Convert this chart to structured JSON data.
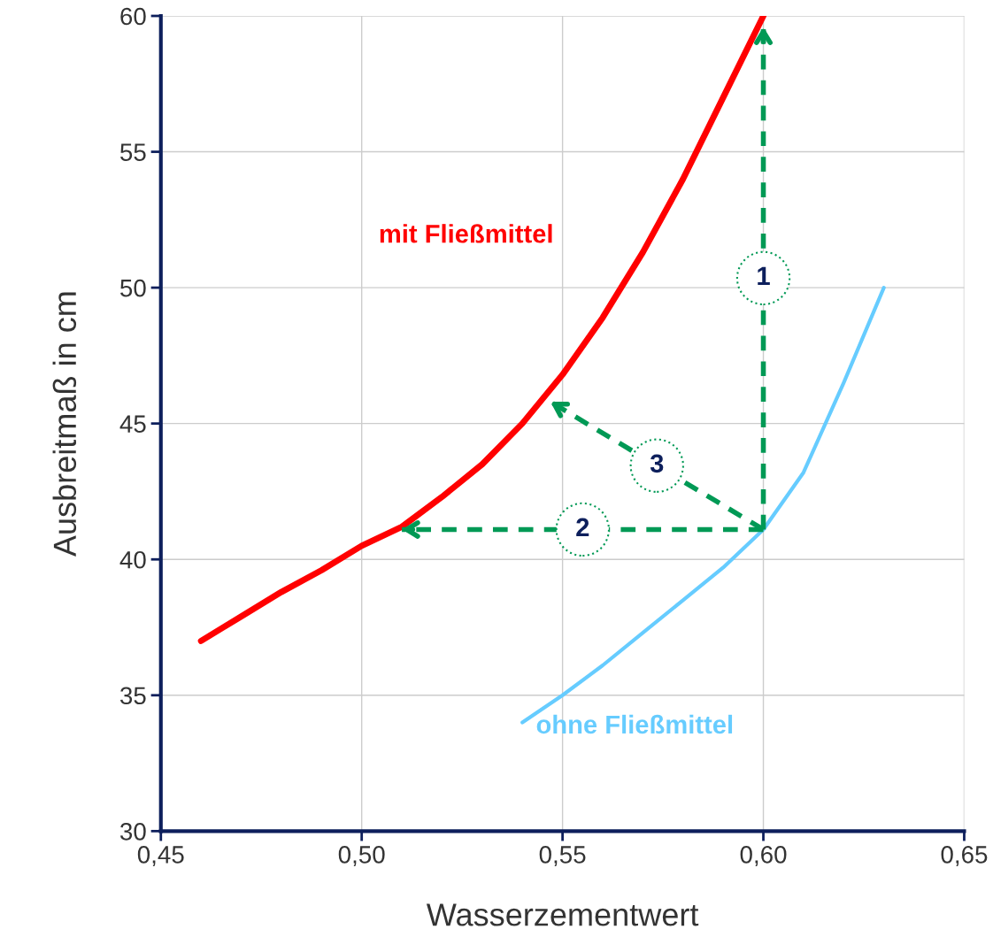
{
  "chart_data": {
    "type": "line",
    "xlabel": "Wasserzementwert",
    "ylabel": "Ausbreitmaß in cm",
    "xlim": [
      0.45,
      0.65
    ],
    "xticks": [
      {
        "value": 0.45,
        "label": "0,45"
      },
      {
        "value": 0.5,
        "label": "0,50"
      },
      {
        "value": 0.55,
        "label": "0,55"
      },
      {
        "value": 0.6,
        "label": "0,60"
      },
      {
        "value": 0.65,
        "label": "0,65"
      }
    ],
    "ylim": [
      30,
      60
    ],
    "yticks": [
      30,
      35,
      40,
      45,
      50,
      55,
      60
    ],
    "grid": true,
    "marker": "none",
    "line_style": "solid",
    "series": [
      {
        "name": "mit Fließmittel",
        "color": "#ff0000",
        "x": [
          0.46,
          0.47,
          0.48,
          0.49,
          0.5,
          0.51,
          0.52,
          0.53,
          0.54,
          0.55,
          0.56,
          0.57,
          0.58,
          0.59,
          0.6
        ],
        "values": [
          37.0,
          37.9,
          38.8,
          39.6,
          40.5,
          41.2,
          42.3,
          43.5,
          45.0,
          46.8,
          48.9,
          51.3,
          54.0,
          57.0,
          60.0
        ]
      },
      {
        "name": "ohne Fließmittel",
        "color": "#66ccff",
        "x": [
          0.54,
          0.55,
          0.56,
          0.57,
          0.58,
          0.59,
          0.6,
          0.61,
          0.62,
          0.63
        ],
        "values": [
          34.0,
          35.0,
          36.1,
          37.3,
          38.5,
          39.7,
          41.1,
          43.2,
          46.5,
          50.0
        ]
      },
      {
        "color": "#009955",
        "line_style": "dashed",
        "x": [
          0.6,
          0.6
        ],
        "values": [
          41.1,
          59.6
        ]
      },
      {
        "color": "#009955",
        "line_style": "dashed",
        "x": [
          0.6,
          0.51
        ],
        "values": [
          41.1,
          41.1
        ]
      },
      {
        "color": "#009955",
        "line_style": "dashed",
        "x": [
          0.6,
          0.547
        ],
        "values": [
          41.1,
          45.8
        ]
      }
    ],
    "annotations": [
      "1",
      "2",
      "3"
    ]
  }
}
